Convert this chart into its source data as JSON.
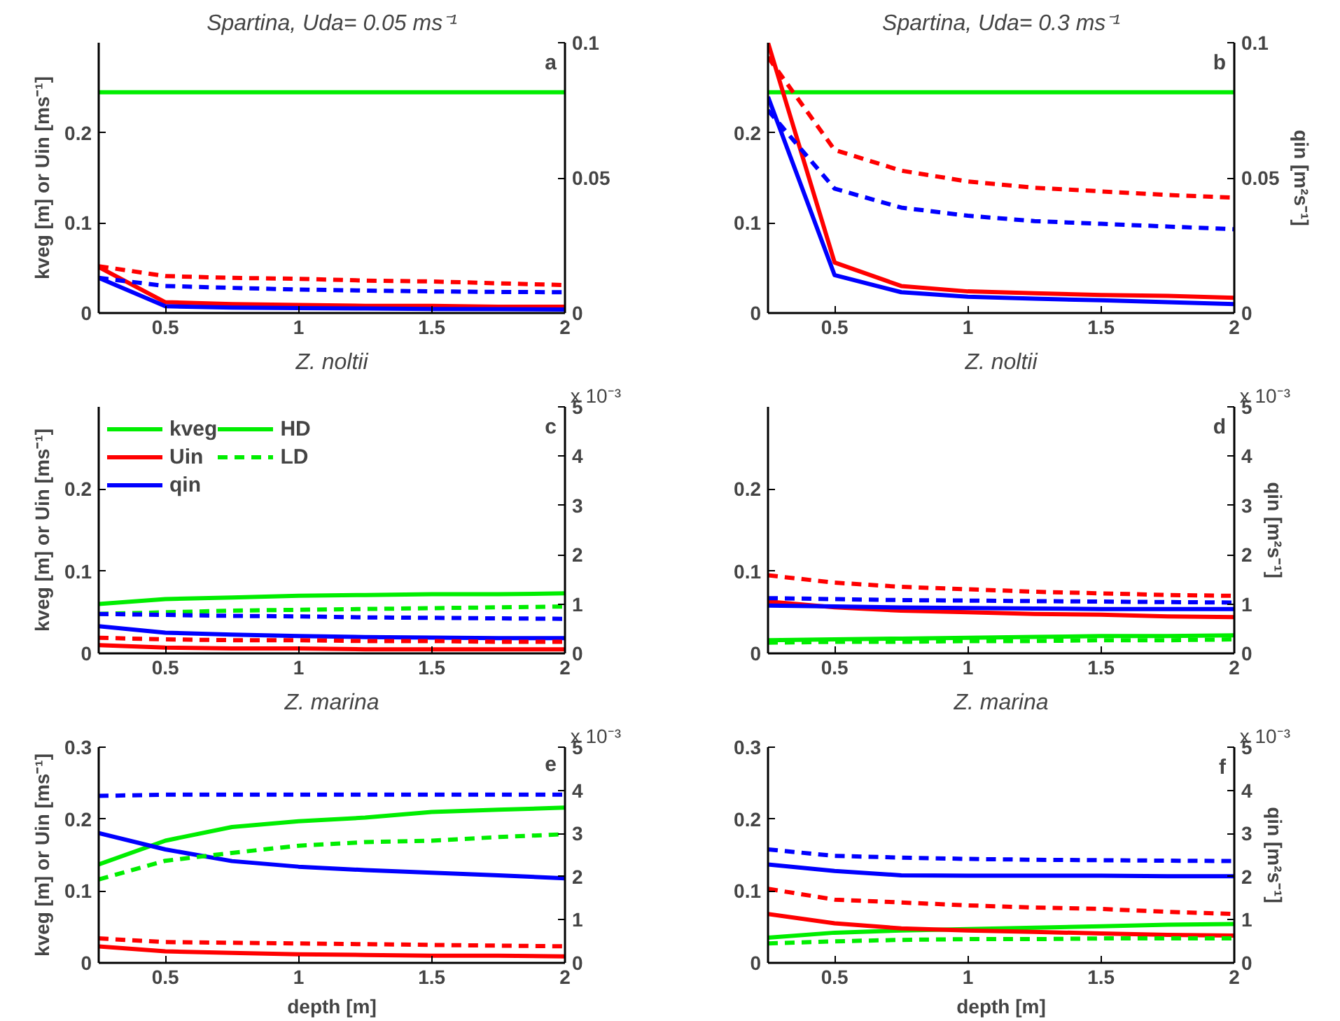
{
  "chart_data": [
    {
      "type": "line",
      "title": "Spartina, Uda= 0.05 ms⁻¹",
      "ylabel": "kveg [m] or Uin [ms⁻¹]",
      "x": [
        0.25,
        0.5,
        0.75,
        1,
        1.25,
        1.5,
        1.75,
        2
      ],
      "xlim": [
        0.25,
        2
      ],
      "xticks": [
        0.5,
        1,
        1.5,
        2
      ],
      "ylim": [
        0,
        0.3
      ],
      "yticks": [
        0,
        0.1,
        0.2
      ],
      "y2lim": [
        0,
        0.1
      ],
      "y2ticks": [
        0,
        0.05,
        0.1
      ],
      "annotations": [
        "a"
      ],
      "legend": false,
      "series": [
        {
          "color": "#00ee00",
          "line_style": "solid",
          "values": [
            0.245,
            0.245,
            0.245,
            0.245,
            0.245,
            0.245,
            0.245,
            0.245
          ]
        },
        {
          "color": "#ff0000",
          "line_style": "solid",
          "values": [
            0.051,
            0.012,
            0.01,
            0.009,
            0.008,
            0.008,
            0.007,
            0.007
          ]
        },
        {
          "color": "#0000ff",
          "line_style": "solid",
          "axis": "y2",
          "values": [
            0.013,
            0.0025,
            0.002,
            0.0018,
            0.0017,
            0.0015,
            0.0014,
            0.0013
          ]
        },
        {
          "color": "#ff0000",
          "line_style": "dashed",
          "values": [
            0.052,
            0.041,
            0.039,
            0.038,
            0.036,
            0.035,
            0.033,
            0.031
          ]
        },
        {
          "color": "#0000ff",
          "line_style": "dashed",
          "axis": "y2",
          "values": [
            0.013,
            0.01,
            0.0093,
            0.0087,
            0.0083,
            0.008,
            0.0078,
            0.0077
          ]
        }
      ]
    },
    {
      "type": "line",
      "title": "Spartina, Uda= 0.3 ms⁻¹",
      "y2label": "qin [m²s⁻¹]",
      "x": [
        0.25,
        0.5,
        0.75,
        1,
        1.25,
        1.5,
        1.75,
        2
      ],
      "xlim": [
        0.25,
        2
      ],
      "xticks": [
        0.5,
        1,
        1.5,
        2
      ],
      "ylim": [
        0,
        0.3
      ],
      "yticks": [
        0,
        0.1,
        0.2
      ],
      "y2lim": [
        0,
        0.1
      ],
      "y2ticks": [
        0,
        0.05,
        0.1
      ],
      "annotations": [
        "b"
      ],
      "legend": false,
      "series": [
        {
          "color": "#00ee00",
          "line_style": "solid",
          "values": [
            0.245,
            0.245,
            0.245,
            0.245,
            0.245,
            0.245,
            0.245,
            0.245
          ]
        },
        {
          "color": "#ff0000",
          "line_style": "solid",
          "values": [
            0.3,
            0.056,
            0.03,
            0.024,
            0.022,
            0.02,
            0.019,
            0.017
          ]
        },
        {
          "color": "#0000ff",
          "line_style": "solid",
          "axis": "y2",
          "values": [
            0.08,
            0.014,
            0.0077,
            0.006,
            0.0053,
            0.0047,
            0.004,
            0.0033
          ]
        },
        {
          "color": "#ff0000",
          "line_style": "dashed",
          "values": [
            0.284,
            0.181,
            0.158,
            0.146,
            0.139,
            0.135,
            0.131,
            0.128
          ]
        },
        {
          "color": "#0000ff",
          "line_style": "dashed",
          "axis": "y2",
          "values": [
            0.075,
            0.046,
            0.039,
            0.036,
            0.034,
            0.033,
            0.032,
            0.031
          ]
        }
      ]
    },
    {
      "type": "line",
      "title": "Z. noltii",
      "ylabel": "kveg [m] or Uin [ms⁻¹]",
      "x": [
        0.25,
        0.5,
        0.75,
        1,
        1.25,
        1.5,
        1.75,
        2
      ],
      "xlim": [
        0.25,
        2
      ],
      "xticks": [
        0.5,
        1,
        1.5,
        2
      ],
      "ylim": [
        0,
        0.3
      ],
      "yticks": [
        0,
        0.1,
        0.2
      ],
      "y2lim": [
        0,
        5
      ],
      "y2ticks": [
        0,
        1,
        2,
        3,
        4,
        5
      ],
      "annotations": [
        "c",
        "x 10⁻³"
      ],
      "legend": "top left",
      "series": [
        {
          "name": "kveg",
          "color": "#00ee00",
          "line_style": "solid",
          "values": [
            0.06,
            0.066,
            0.068,
            0.07,
            0.071,
            0.072,
            0.072,
            0.073
          ]
        },
        {
          "name": "Uin",
          "color": "#ff0000",
          "line_style": "solid",
          "values": [
            0.01,
            0.007,
            0.006,
            0.006,
            0.005,
            0.005,
            0.005,
            0.005
          ]
        },
        {
          "name": "qin",
          "color": "#0000ff",
          "line_style": "solid",
          "axis": "y2",
          "values": [
            0.55,
            0.42,
            0.38,
            0.35,
            0.33,
            0.32,
            0.31,
            0.31
          ]
        },
        {
          "name": "HD",
          "color": "#00ee00",
          "line_style": "solid",
          "values": [
            null,
            null,
            null,
            null,
            null,
            null,
            null,
            null
          ]
        },
        {
          "name": "LD",
          "color": "#00ee00",
          "line_style": "dashed",
          "values": [
            0.048,
            0.05,
            0.052,
            0.053,
            0.054,
            0.055,
            0.056,
            0.057
          ]
        },
        {
          "color": "#ff0000",
          "line_style": "dashed",
          "values": [
            0.019,
            0.017,
            0.016,
            0.016,
            0.015,
            0.015,
            0.014,
            0.014
          ]
        },
        {
          "color": "#0000ff",
          "line_style": "dashed",
          "axis": "y2",
          "values": [
            0.8,
            0.78,
            0.76,
            0.75,
            0.73,
            0.72,
            0.71,
            0.7
          ]
        }
      ]
    },
    {
      "type": "line",
      "title": "Z. noltii",
      "y2label": "qin [m²s⁻¹]",
      "x": [
        0.25,
        0.5,
        0.75,
        1,
        1.25,
        1.5,
        1.75,
        2
      ],
      "xlim": [
        0.25,
        2
      ],
      "xticks": [
        0.5,
        1,
        1.5,
        2
      ],
      "ylim": [
        0,
        0.3
      ],
      "yticks": [
        0,
        0.1,
        0.2
      ],
      "y2lim": [
        0,
        5
      ],
      "y2ticks": [
        0,
        1,
        2,
        3,
        4,
        5
      ],
      "annotations": [
        "d",
        "x 10⁻³"
      ],
      "legend": false,
      "series": [
        {
          "color": "#00ee00",
          "line_style": "solid",
          "values": [
            0.016,
            0.017,
            0.018,
            0.019,
            0.02,
            0.021,
            0.021,
            0.022
          ]
        },
        {
          "color": "#ff0000",
          "line_style": "solid",
          "values": [
            0.063,
            0.056,
            0.052,
            0.05,
            0.048,
            0.047,
            0.045,
            0.044
          ]
        },
        {
          "color": "#0000ff",
          "line_style": "solid",
          "axis": "y2",
          "values": [
            0.97,
            0.95,
            0.93,
            0.92,
            0.91,
            0.9,
            0.9,
            0.9
          ]
        },
        {
          "color": "#00ee00",
          "line_style": "dashed",
          "values": [
            0.013,
            0.014,
            0.014,
            0.015,
            0.015,
            0.016,
            0.016,
            0.017
          ]
        },
        {
          "color": "#ff0000",
          "line_style": "dashed",
          "values": [
            0.095,
            0.086,
            0.081,
            0.078,
            0.075,
            0.073,
            0.071,
            0.07
          ]
        },
        {
          "color": "#0000ff",
          "line_style": "dashed",
          "axis": "y2",
          "values": [
            1.12,
            1.1,
            1.08,
            1.07,
            1.06,
            1.05,
            1.04,
            1.03
          ]
        }
      ]
    },
    {
      "type": "line",
      "title": "Z. marina",
      "ylabel": "kveg [m] or Uin [ms⁻¹]",
      "xlabel": "depth [m]",
      "x": [
        0.25,
        0.5,
        0.75,
        1,
        1.25,
        1.5,
        1.75,
        2
      ],
      "xlim": [
        0.25,
        2
      ],
      "xticks": [
        0.5,
        1,
        1.5,
        2
      ],
      "ylim": [
        0,
        0.3
      ],
      "yticks": [
        0,
        0.1,
        0.2,
        0.3
      ],
      "y2lim": [
        0,
        5
      ],
      "y2ticks": [
        0,
        1,
        2,
        3,
        4,
        5
      ],
      "annotations": [
        "e",
        "x 10⁻³"
      ],
      "legend": false,
      "series": [
        {
          "color": "#00ee00",
          "line_style": "solid",
          "values": [
            0.137,
            0.17,
            0.189,
            0.197,
            0.202,
            0.21,
            0.213,
            0.216
          ]
        },
        {
          "color": "#ff0000",
          "line_style": "solid",
          "values": [
            0.023,
            0.016,
            0.014,
            0.012,
            0.011,
            0.01,
            0.01,
            0.009
          ]
        },
        {
          "color": "#0000ff",
          "line_style": "solid",
          "axis": "y2",
          "values": [
            3.01,
            2.63,
            2.36,
            2.23,
            2.15,
            2.09,
            2.03,
            1.96
          ]
        },
        {
          "color": "#00ee00",
          "line_style": "dashed",
          "values": [
            0.116,
            0.142,
            0.153,
            0.163,
            0.168,
            0.17,
            0.175,
            0.179
          ]
        },
        {
          "color": "#ff0000",
          "line_style": "dashed",
          "values": [
            0.034,
            0.029,
            0.028,
            0.027,
            0.026,
            0.025,
            0.024,
            0.023
          ]
        },
        {
          "color": "#0000ff",
          "line_style": "dashed",
          "axis": "y2",
          "values": [
            3.87,
            3.9,
            3.9,
            3.9,
            3.9,
            3.9,
            3.9,
            3.9
          ]
        }
      ]
    },
    {
      "type": "line",
      "title": "Z. marina",
      "y2label": "qin [m²s⁻¹]",
      "xlabel": "depth [m]",
      "x": [
        0.25,
        0.5,
        0.75,
        1,
        1.25,
        1.5,
        1.75,
        2
      ],
      "xlim": [
        0.25,
        2
      ],
      "xticks": [
        0.5,
        1,
        1.5,
        2
      ],
      "ylim": [
        0,
        0.3
      ],
      "yticks": [
        0,
        0.1,
        0.2,
        0.3
      ],
      "y2lim": [
        0,
        5
      ],
      "y2ticks": [
        0,
        1,
        2,
        3,
        4,
        5
      ],
      "annotations": [
        "f",
        "x 10⁻³"
      ],
      "legend": false,
      "series": [
        {
          "color": "#00ee00",
          "line_style": "solid",
          "values": [
            0.035,
            0.042,
            0.045,
            0.047,
            0.049,
            0.051,
            0.053,
            0.054
          ]
        },
        {
          "color": "#ff0000",
          "line_style": "solid",
          "values": [
            0.068,
            0.055,
            0.048,
            0.045,
            0.043,
            0.041,
            0.039,
            0.038
          ]
        },
        {
          "color": "#0000ff",
          "line_style": "solid",
          "axis": "y2",
          "values": [
            2.28,
            2.13,
            2.03,
            2.02,
            2.02,
            2.02,
            2.01,
            2.01
          ]
        },
        {
          "color": "#00ee00",
          "line_style": "dashed",
          "values": [
            0.027,
            0.03,
            0.032,
            0.033,
            0.033,
            0.034,
            0.034,
            0.034
          ]
        },
        {
          "color": "#ff0000",
          "line_style": "dashed",
          "values": [
            0.103,
            0.088,
            0.084,
            0.08,
            0.077,
            0.075,
            0.071,
            0.068
          ]
        },
        {
          "color": "#0000ff",
          "line_style": "dashed",
          "axis": "y2",
          "values": [
            2.63,
            2.48,
            2.44,
            2.41,
            2.39,
            2.38,
            2.37,
            2.36
          ]
        }
      ]
    }
  ]
}
